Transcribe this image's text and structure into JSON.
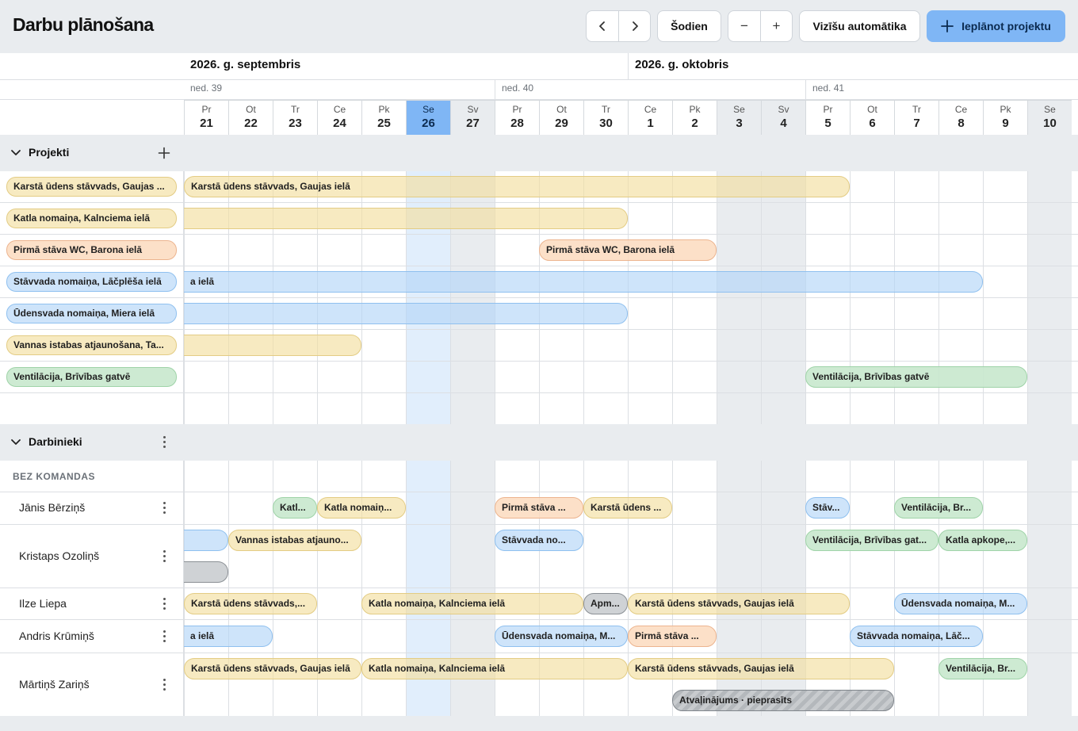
{
  "app": {
    "title": "Darbu plānošana"
  },
  "toolbar": {
    "today_label": "Šodien",
    "zoom_out_label": "−",
    "zoom_in_label": "+",
    "visual_auto_label": "Vizīšu automātika",
    "schedule_label": "Ieplānot projektu",
    "icons": [
      "chevron-left-icon",
      "chevron-right-icon",
      "plus-icon"
    ]
  },
  "calendar": {
    "months": [
      "2026. g. septembris",
      "2026. g. oktobris"
    ],
    "weeks": [
      "ned. 39",
      "ned. 40",
      "ned. 41"
    ],
    "days": [
      {
        "n": "Pr",
        "d": "21"
      },
      {
        "n": "Ot",
        "d": "22"
      },
      {
        "n": "Tr",
        "d": "23"
      },
      {
        "n": "Ce",
        "d": "24"
      },
      {
        "n": "Pk",
        "d": "25"
      },
      {
        "n": "Se",
        "d": "26"
      },
      {
        "n": "Sv",
        "d": "27"
      },
      {
        "n": "Pr",
        "d": "28"
      },
      {
        "n": "Ot",
        "d": "29"
      },
      {
        "n": "Tr",
        "d": "30"
      },
      {
        "n": "Ce",
        "d": "1"
      },
      {
        "n": "Pk",
        "d": "2"
      },
      {
        "n": "Se",
        "d": "3"
      },
      {
        "n": "Sv",
        "d": "4"
      },
      {
        "n": "Pr",
        "d": "5"
      },
      {
        "n": "Ot",
        "d": "6"
      },
      {
        "n": "Tr",
        "d": "7"
      },
      {
        "n": "Ce",
        "d": "8"
      },
      {
        "n": "Pk",
        "d": "9"
      },
      {
        "n": "Se",
        "d": "10"
      }
    ],
    "today": "26",
    "colors": {
      "today": "#7fb6f5",
      "weekend": "#e9ecef",
      "accent": "#7fb6f5"
    }
  },
  "projects": {
    "title": "Projekti",
    "items": [
      {
        "label": "Karstā ūdens stāvvads, Gaujas ...",
        "bar": "Karstā ūdens stāvvads, Gaujas ielā",
        "color": "yellow"
      },
      {
        "label": "Katla nomaiņa, Kalnciema ielā",
        "bar": "",
        "color": "yellow"
      },
      {
        "label": "Pirmā stāva WC, Barona ielā",
        "bar": "Pirmā stāva WC, Barona ielā",
        "color": "orange"
      },
      {
        "label": "Stāvvada nomaiņa, Lāčplēša ielā",
        "bar": "a ielā",
        "color": "blue"
      },
      {
        "label": "Ūdensvada nomaiņa, Miera ielā",
        "bar": "",
        "color": "blue"
      },
      {
        "label": "Vannas istabas atjaunošana, Ta...",
        "bar": "",
        "color": "yellow"
      },
      {
        "label": "Ventilācija, Brīvības gatvē",
        "bar": "Ventilācija, Brīvības gatvē",
        "color": "green"
      }
    ]
  },
  "workers": {
    "title": "Darbinieki",
    "group_label": "BEZ KOMANDAS",
    "rows": [
      {
        "name": "Jānis Bērziņš",
        "bars": [
          "Katl...",
          "Katla nomaiņ...",
          "Pirmā stāva ...",
          "Karstā ūdens ...",
          "Stāv...",
          "Ventilācija, Br..."
        ]
      },
      {
        "name": "Kristaps Ozoliņš",
        "bars": [
          "",
          "Vannas istabas atjauno...",
          "Stāvvada no...",
          "Ventilācija, Brīvības gat...",
          "Katla apkope,...",
          ""
        ]
      },
      {
        "name": "Ilze Liepa",
        "bars": [
          "Karstā ūdens stāvvads,...",
          "Katla nomaiņa, Kalnciema ielā",
          "Apm...",
          "Karstā ūdens stāvvads, Gaujas ielā",
          "Ūdensvada nomaiņa, M..."
        ]
      },
      {
        "name": "Andris Krūmiņš",
        "bars": [
          "a ielā",
          "Ūdensvada nomaiņa, M...",
          "Pirmā stāva ...",
          "Stāvvada nomaiņa, Lāč..."
        ]
      },
      {
        "name": "Mārtiņš Zariņš",
        "bars": [
          "Karstā ūdens stāvvads, Gaujas ielā",
          "Katla nomaiņa, Kalnciema ielā",
          "Karstā ūdens stāvvads, Gaujas ielā",
          "Ventilācija, Br...",
          "Atvaļinājums · pieprasīts"
        ]
      }
    ]
  }
}
